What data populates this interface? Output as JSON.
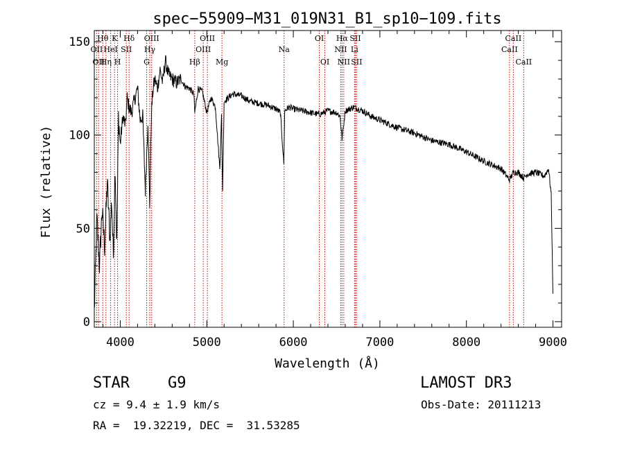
{
  "chart_data": {
    "type": "line",
    "title": "spec−55909−M31_019N31_B1_sp10−109.fits",
    "xlabel": "Wavelength (Å)",
    "ylabel": "Flux (relative)",
    "xlim": [
      3700,
      9100
    ],
    "ylim": [
      -3,
      156
    ],
    "xticks": [
      4000,
      5000,
      6000,
      7000,
      8000,
      9000
    ],
    "yticks": [
      0,
      50,
      100,
      150
    ],
    "series": [
      {
        "name": "spectrum",
        "color": "#000000",
        "x": [
          3700,
          3730,
          3760,
          3790,
          3820,
          3850,
          3880,
          3900,
          3920,
          3940,
          3960,
          3980,
          4000,
          4030,
          4060,
          4080,
          4100,
          4130,
          4160,
          4200,
          4230,
          4260,
          4290,
          4310,
          4320,
          4340,
          4360,
          4380,
          4400,
          4430,
          4460,
          4490,
          4520,
          4560,
          4600,
          4650,
          4700,
          4750,
          4800,
          4850,
          4861,
          4900,
          4950,
          5000,
          5050,
          5100,
          5150,
          5170,
          5183,
          5200,
          5250,
          5300,
          5400,
          5500,
          5600,
          5700,
          5800,
          5850,
          5890,
          5900,
          5950,
          6000,
          6100,
          6200,
          6300,
          6400,
          6500,
          6540,
          6563,
          6600,
          6650,
          6700,
          6750,
          6800,
          6900,
          7000,
          7200,
          7400,
          7600,
          7800,
          8000,
          8200,
          8400,
          8498,
          8542,
          8600,
          8662,
          8700,
          8800,
          8900,
          8950,
          8980,
          9000
        ],
        "values": [
          5,
          55,
          30,
          60,
          40,
          75,
          45,
          65,
          35,
          85,
          40,
          110,
          95,
          110,
          105,
          120,
          115,
          112,
          118,
          125,
          108,
          110,
          70,
          95,
          108,
          62,
          112,
          125,
          130,
          125,
          135,
          128,
          140,
          132,
          130,
          128,
          130,
          126,
          125,
          122,
          112,
          125,
          123,
          112,
          120,
          115,
          82,
          110,
          70,
          118,
          120,
          122,
          121,
          118,
          117,
          116,
          114,
          112,
          85,
          113,
          115,
          114,
          113,
          112,
          111,
          113,
          112,
          110,
          98,
          113,
          114,
          115,
          114,
          113,
          110,
          108,
          104,
          101,
          97,
          95,
          91,
          86,
          82,
          76,
          80,
          80,
          77,
          79,
          80,
          78,
          82,
          68,
          15
        ]
      }
    ],
    "line_markers": [
      {
        "wavelength": 3798,
        "label": "Hθ",
        "row": 1
      },
      {
        "wavelength": 3727,
        "label": "OII",
        "row": 2
      },
      {
        "wavelength": 3750,
        "label": "OII",
        "row": 3
      },
      {
        "wavelength": 3835,
        "label": "Hη",
        "row": 3
      },
      {
        "wavelength": 3889,
        "label": "HeI",
        "row": 2
      },
      {
        "wavelength": 3934,
        "label": "K",
        "row": 1
      },
      {
        "wavelength": 3969,
        "label": "H",
        "row": 3
      },
      {
        "wavelength": 4070,
        "label": "SII",
        "row": 2
      },
      {
        "wavelength": 4102,
        "label": "Hδ",
        "row": 1
      },
      {
        "wavelength": 4305,
        "label": "G",
        "row": 3
      },
      {
        "wavelength": 4341,
        "label": "Hγ",
        "row": 2
      },
      {
        "wavelength": 4363,
        "label": "OIII",
        "row": 1
      },
      {
        "wavelength": 4861,
        "label": "Hβ",
        "row": 3
      },
      {
        "wavelength": 4959,
        "label": "OIII",
        "row": 2
      },
      {
        "wavelength": 5007,
        "label": "OIII",
        "row": 1
      },
      {
        "wavelength": 5175,
        "label": "Mg",
        "row": 3
      },
      {
        "wavelength": 5893,
        "label": "Na",
        "row": 2
      },
      {
        "wavelength": 6300,
        "label": "OI",
        "row": 1
      },
      {
        "wavelength": 6364,
        "label": "OI",
        "row": 3
      },
      {
        "wavelength": 6548,
        "label": "NII",
        "row": 2
      },
      {
        "wavelength": 6563,
        "label": "Hα",
        "row": 1
      },
      {
        "wavelength": 6583,
        "label": "NII",
        "row": 3
      },
      {
        "wavelength": 6707,
        "label": "Li",
        "row": 2
      },
      {
        "wavelength": 6716,
        "label": "SII",
        "row": 1
      },
      {
        "wavelength": 6731,
        "label": "SII",
        "row": 3
      },
      {
        "wavelength": 8498,
        "label": "CaII",
        "row": 2
      },
      {
        "wavelength": 8542,
        "label": "CaII",
        "row": 1
      },
      {
        "wavelength": 8662,
        "label": "CaII",
        "row": 3
      }
    ],
    "marker_color": "#cc0000"
  },
  "info": {
    "object_class": "STAR",
    "subclass": "G9",
    "survey": "LAMOST DR3",
    "redshift_line": "cz = 9.4 ± 1.9 km/s",
    "obs_date_line": "Obs-Date: 20111213",
    "coords_line": "RA =  19.32219, DEC =  31.53285"
  }
}
